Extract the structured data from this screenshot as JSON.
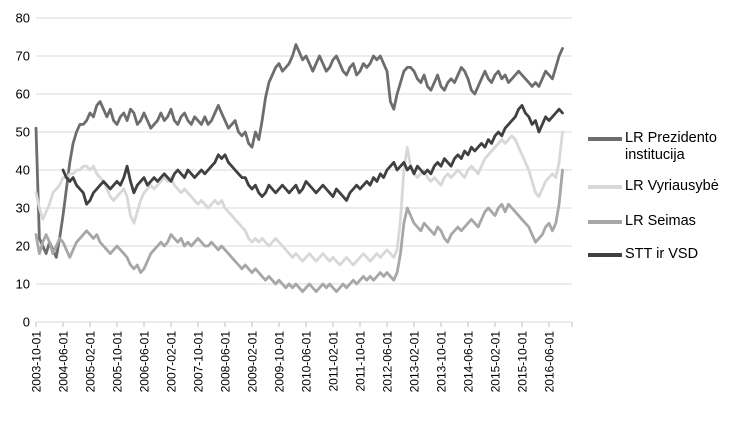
{
  "chart_data": {
    "type": "line",
    "title": "",
    "xlabel": "",
    "ylabel": "",
    "ylim": [
      0,
      80
    ],
    "y_ticks": [
      0,
      10,
      20,
      30,
      40,
      50,
      60,
      70,
      80
    ],
    "x_start_month": "2003-10",
    "x_interval": "monthly",
    "x_tick_labels": [
      "2003-10-01",
      "2004-06-01",
      "2005-02-01",
      "2005-10-01",
      "2006-06-01",
      "2007-02-01",
      "2007-10-01",
      "2008-06-01",
      "2009-02-01",
      "2009-10-01",
      "2010-06-01",
      "2011-02-01",
      "2011-10-01",
      "2012-06-01",
      "2013-02-01",
      "2013-10-01",
      "2014-06-01",
      "2015-02-01",
      "2015-10-01",
      "2016-06-01"
    ],
    "x_tick_every_n_months": 8,
    "grid": true,
    "legend_position": "right",
    "colors": {
      "gridline": "#d9d9d9",
      "axis": "#bfbfbf",
      "text": "#000000",
      "background": "#ffffff"
    },
    "series": [
      {
        "name": "LR Prezidento institucija",
        "color": "#6d6d6d",
        "values": [
          51,
          22,
          20,
          18,
          21,
          19,
          17,
          22,
          28,
          35,
          42,
          47,
          50,
          52,
          52,
          53,
          55,
          54,
          57,
          58,
          56,
          54,
          56,
          53,
          52,
          54,
          55,
          53,
          56,
          55,
          52,
          53,
          55,
          53,
          51,
          52,
          53,
          55,
          53,
          54,
          56,
          53,
          52,
          54,
          55,
          53,
          52,
          54,
          53,
          52,
          54,
          52,
          53,
          55,
          57,
          55,
          53,
          51,
          52,
          53,
          50,
          49,
          50,
          47,
          46,
          50,
          48,
          53,
          59,
          63,
          65,
          67,
          68,
          66,
          67,
          68,
          70,
          73,
          71,
          69,
          70,
          68,
          66,
          68,
          70,
          68,
          66,
          67,
          69,
          70,
          68,
          66,
          65,
          67,
          68,
          65,
          66,
          68,
          67,
          68,
          70,
          69,
          70,
          68,
          66,
          58,
          56,
          60,
          63,
          66,
          67,
          67,
          66,
          64,
          63,
          65,
          62,
          61,
          63,
          65,
          62,
          61,
          63,
          64,
          63,
          65,
          67,
          66,
          64,
          61,
          60,
          62,
          64,
          66,
          64,
          63,
          65,
          66,
          64,
          65,
          63,
          64,
          65,
          66,
          65,
          64,
          63,
          62,
          63,
          62,
          64,
          66,
          65,
          64,
          67,
          70,
          72
        ]
      },
      {
        "name": "LR Vyriausybė",
        "color": "#d8d8d8",
        "values": [
          34,
          30,
          27,
          29,
          31,
          34,
          35,
          36,
          38,
          38,
          39,
          39,
          40,
          40,
          41,
          41,
          40,
          41,
          39,
          38,
          37,
          35,
          33,
          32,
          33,
          34,
          35,
          33,
          28,
          26,
          29,
          32,
          34,
          35,
          36,
          35,
          36,
          37,
          38,
          37,
          38,
          36,
          35,
          34,
          35,
          34,
          33,
          32,
          31,
          32,
          31,
          30,
          31,
          32,
          31,
          32,
          30,
          29,
          28,
          27,
          26,
          25,
          24,
          22,
          21,
          22,
          21,
          22,
          21,
          20,
          21,
          22,
          21,
          20,
          19,
          18,
          17,
          18,
          17,
          16,
          17,
          18,
          17,
          16,
          17,
          18,
          17,
          16,
          17,
          16,
          15,
          16,
          17,
          16,
          15,
          16,
          17,
          18,
          17,
          16,
          17,
          18,
          17,
          18,
          19,
          18,
          17,
          19,
          27,
          40,
          46,
          41,
          39,
          38,
          39,
          40,
          38,
          37,
          38,
          37,
          36,
          38,
          39,
          38,
          39,
          40,
          39,
          38,
          40,
          41,
          40,
          39,
          41,
          43,
          44,
          45,
          46,
          47,
          48,
          47,
          48,
          49,
          48,
          46,
          44,
          42,
          40,
          37,
          34,
          33,
          35,
          37,
          38,
          39,
          38,
          42,
          50
        ]
      },
      {
        "name": "LR Seimas",
        "color": "#a7a7a7",
        "values": [
          23,
          18,
          21,
          23,
          21,
          18,
          20,
          22,
          21,
          19,
          17,
          19,
          21,
          22,
          23,
          24,
          23,
          22,
          23,
          21,
          20,
          19,
          18,
          19,
          20,
          19,
          18,
          17,
          15,
          14,
          15,
          13,
          14,
          16,
          18,
          19,
          20,
          21,
          20,
          21,
          23,
          22,
          21,
          22,
          20,
          21,
          20,
          21,
          22,
          21,
          20,
          20,
          21,
          20,
          19,
          20,
          19,
          18,
          17,
          16,
          15,
          14,
          15,
          14,
          13,
          14,
          13,
          12,
          11,
          12,
          11,
          10,
          11,
          10,
          9,
          10,
          9,
          10,
          9,
          8,
          9,
          10,
          9,
          8,
          9,
          10,
          9,
          10,
          9,
          8,
          9,
          10,
          9,
          10,
          11,
          10,
          11,
          12,
          11,
          12,
          11,
          12,
          13,
          12,
          13,
          12,
          11,
          13,
          18,
          26,
          30,
          28,
          26,
          25,
          24,
          26,
          25,
          24,
          23,
          25,
          24,
          22,
          21,
          23,
          24,
          25,
          24,
          25,
          26,
          27,
          26,
          25,
          27,
          29,
          30,
          29,
          28,
          30,
          31,
          29,
          31,
          30,
          29,
          28,
          27,
          26,
          25,
          23,
          21,
          22,
          23,
          25,
          26,
          24,
          26,
          31,
          40
        ]
      },
      {
        "name": "STT ir VSD",
        "color": "#404040",
        "values": [
          null,
          null,
          null,
          null,
          null,
          null,
          null,
          null,
          40,
          38,
          37,
          38,
          36,
          35,
          34,
          31,
          32,
          34,
          35,
          36,
          37,
          36,
          35,
          36,
          37,
          36,
          38,
          41,
          37,
          34,
          36,
          37,
          38,
          36,
          37,
          38,
          37,
          38,
          39,
          38,
          37,
          39,
          40,
          39,
          38,
          40,
          39,
          38,
          39,
          40,
          39,
          40,
          41,
          42,
          44,
          43,
          44,
          42,
          41,
          40,
          39,
          38,
          38,
          36,
          35,
          36,
          34,
          33,
          34,
          36,
          35,
          34,
          35,
          36,
          35,
          34,
          35,
          36,
          34,
          35,
          37,
          36,
          35,
          34,
          35,
          36,
          35,
          34,
          33,
          35,
          34,
          33,
          32,
          34,
          35,
          36,
          35,
          36,
          37,
          36,
          38,
          37,
          39,
          38,
          40,
          41,
          42,
          40,
          41,
          42,
          40,
          41,
          39,
          41,
          40,
          39,
          40,
          39,
          41,
          42,
          41,
          43,
          42,
          41,
          43,
          44,
          43,
          45,
          44,
          46,
          45,
          46,
          47,
          46,
          48,
          47,
          49,
          50,
          49,
          51,
          52,
          53,
          54,
          56,
          57,
          55,
          54,
          52,
          53,
          50,
          52,
          54,
          53,
          54,
          55,
          56,
          55
        ]
      }
    ]
  },
  "legend": {
    "items": [
      "LR Prezidento institucija",
      "LR Vyriausybė",
      "LR Seimas",
      "STT ir VSD"
    ]
  }
}
